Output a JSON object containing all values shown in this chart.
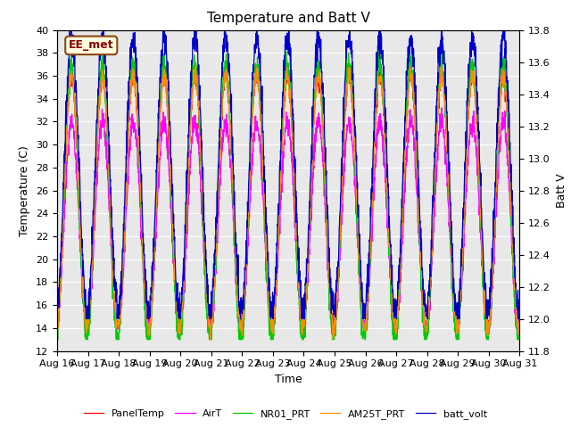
{
  "title": "Temperature and Batt V",
  "xlabel": "Time",
  "ylabel_left": "Temperature (C)",
  "ylabel_right": "Batt V",
  "ylim_left": [
    12,
    40
  ],
  "ylim_right": [
    11.8,
    13.8
  ],
  "x_labels": [
    "Aug 16",
    "Aug 17",
    "Aug 18",
    "Aug 19",
    "Aug 20",
    "Aug 21",
    "Aug 22",
    "Aug 23",
    "Aug 24",
    "Aug 25",
    "Aug 26",
    "Aug 27",
    "Aug 28",
    "Aug 29",
    "Aug 30",
    "Aug 31"
  ],
  "annotation_text": "EE_met",
  "legend_entries": [
    "PanelTemp",
    "AirT",
    "NR01_PRT",
    "AM25T_PRT",
    "batt_volt"
  ],
  "legend_colors": [
    "#FF0000",
    "#FF00FF",
    "#00CC00",
    "#FF8C00",
    "#0000CC"
  ],
  "background_color": "#E8E8E8",
  "title_fontsize": 11,
  "axis_fontsize": 9,
  "tick_fontsize": 8
}
